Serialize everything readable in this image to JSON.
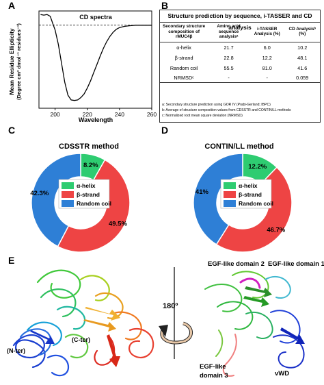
{
  "panels": {
    "a": "A",
    "b": "B",
    "c": "C",
    "d": "D",
    "e": "E"
  },
  "chart_data": [
    {
      "type": "line",
      "title": "CD spectra",
      "xlabel": "Wavelength",
      "ylabel": "Mean Residue Ellipticity",
      "ylabel_units": "(Degree cm² dmol⁻¹ residues⁻¹)",
      "xlim": [
        190,
        260
      ],
      "x_ticks": [
        "200",
        "220",
        "240",
        "260"
      ],
      "baseline_zero": true,
      "x": [
        191,
        193,
        195,
        197,
        199,
        200,
        202,
        204,
        206,
        208,
        210,
        212,
        214,
        216,
        218,
        220,
        222,
        224,
        226,
        228,
        230,
        232,
        234,
        236,
        238,
        240,
        243,
        246,
        250,
        255,
        260
      ],
      "y": [
        0.9,
        0.85,
        0.9,
        0.75,
        -0.02,
        -0.4,
        -1.6,
        -3.2,
        -4.8,
        -5.9,
        -6.3,
        -6.35,
        -6.3,
        -6.1,
        -5.8,
        -5.3,
        -4.7,
        -4.0,
        -3.3,
        -2.6,
        -1.95,
        -1.4,
        -0.95,
        -0.6,
        -0.35,
        -0.2,
        -0.1,
        -0.05,
        0,
        0,
        0
      ]
    },
    {
      "type": "pie",
      "title": "CDSSTR method",
      "categories": [
        "α-helix",
        "β-strand",
        "Random coil"
      ],
      "values": [
        8.2,
        49.5,
        42.3
      ],
      "labels": [
        "8.2%",
        "49.5%",
        "42.3%"
      ],
      "colors": [
        "#2ecc71",
        "#ee4444",
        "#2e7fd6"
      ],
      "legend_position": "center"
    },
    {
      "type": "pie",
      "title": "CONTIN/LL method",
      "categories": [
        "α-helix",
        "β-strand",
        "Random coil"
      ],
      "values": [
        12.2,
        46.7,
        41
      ],
      "labels": [
        "12.2%",
        "46.7%",
        "41%"
      ],
      "colors": [
        "#2ecc71",
        "#ee4444",
        "#2e7fd6"
      ],
      "legend_position": "center"
    }
  ],
  "table": {
    "title": "Structure prediction by sequence, i-TASSER and CD analysis",
    "headers": [
      "Secondary structure composition of rMUC4β",
      "Amino acid sequence analysisᵃ",
      "i-TASSER Analysis (%)",
      "CD Analysisᵇ (%)"
    ],
    "rows": [
      [
        "α-helix",
        "21.7",
        "6.0",
        "10.2"
      ],
      [
        "β-strand",
        "22.8",
        "12.2",
        "48.1"
      ],
      [
        "Random coil",
        "55.5",
        "81.0",
        "41.6"
      ],
      [
        "NRMSDᶜ",
        "-",
        "-",
        "0.059"
      ]
    ],
    "notes": [
      "a: Secondary structure prediction using GOR IV (Prabi-Gerland; IBPC)",
      "b: Average of structure composition values from CDSSTR and CONTIN/LL methods",
      "c: Normalized root mean square deviation (NRMSD)"
    ]
  },
  "structure": {
    "rotation_label": "180º",
    "left_labels": [
      "(N-ter)",
      "(C-ter)"
    ],
    "right_labels": [
      "EGF-like domain 2",
      "EGF-like domain 1",
      "EGF-like",
      "domain 3",
      "vWD"
    ]
  }
}
